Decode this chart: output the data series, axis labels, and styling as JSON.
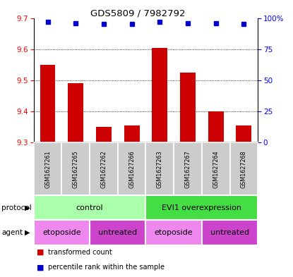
{
  "title": "GDS5809 / 7982792",
  "samples": [
    "GSM1627261",
    "GSM1627265",
    "GSM1627262",
    "GSM1627266",
    "GSM1627263",
    "GSM1627267",
    "GSM1627264",
    "GSM1627268"
  ],
  "bar_values": [
    9.55,
    9.49,
    9.35,
    9.355,
    9.605,
    9.525,
    9.4,
    9.355
  ],
  "percentile_values": [
    97,
    96,
    95,
    95,
    97,
    96,
    96,
    95
  ],
  "ylim_left": [
    9.3,
    9.7
  ],
  "ylim_right": [
    0,
    100
  ],
  "yticks_left": [
    9.3,
    9.4,
    9.5,
    9.6,
    9.7
  ],
  "yticks_right": [
    0,
    25,
    50,
    75,
    100
  ],
  "right_tick_labels": [
    "0",
    "25",
    "50",
    "75",
    "100%"
  ],
  "bar_color": "#cc0000",
  "dot_color": "#0000cc",
  "bg_color": "#ffffff",
  "protocol_groups": [
    {
      "label": "control",
      "start": 0,
      "end": 4,
      "color": "#aaffaa"
    },
    {
      "label": "EVI1 overexpression",
      "start": 4,
      "end": 8,
      "color": "#44dd44"
    }
  ],
  "agent_groups": [
    {
      "label": "etoposide",
      "start": 0,
      "end": 2,
      "color": "#ee88ee"
    },
    {
      "label": "untreated",
      "start": 2,
      "end": 4,
      "color": "#cc44cc"
    },
    {
      "label": "etoposide",
      "start": 4,
      "end": 6,
      "color": "#ee88ee"
    },
    {
      "label": "untreated",
      "start": 6,
      "end": 8,
      "color": "#cc44cc"
    }
  ],
  "sample_box_color": "#cccccc",
  "legend_items": [
    {
      "color": "#cc0000",
      "label": "transformed count"
    },
    {
      "color": "#0000cc",
      "label": "percentile rank within the sample"
    }
  ]
}
